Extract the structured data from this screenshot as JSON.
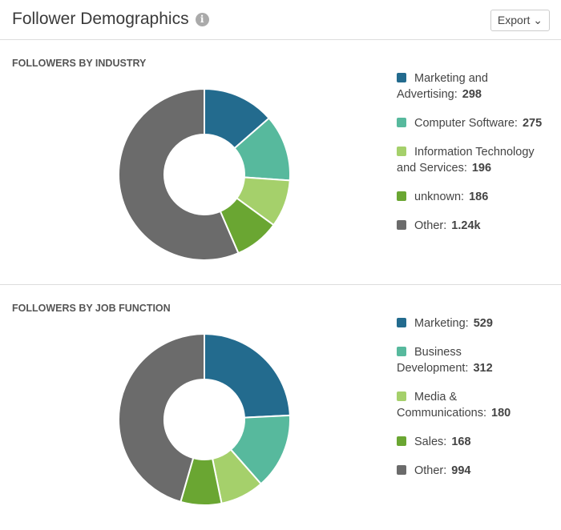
{
  "header": {
    "title": "Follower Demographics",
    "info_icon": "info-icon",
    "export_label": "Export ⌄"
  },
  "chart_data": [
    {
      "type": "pie",
      "donut": true,
      "title": "FOLLOWERS BY INDUSTRY",
      "legend": "right",
      "categories": [
        "Marketing and Advertising",
        "Computer Software",
        "Information Technology and Services",
        "unknown",
        "Other"
      ],
      "values": [
        298,
        275,
        196,
        186,
        1240
      ],
      "value_labels": [
        "298",
        "275",
        "196",
        "186",
        "1.24k"
      ],
      "colors": [
        "#236b8e",
        "#57b99d",
        "#a5d06b",
        "#6aa632",
        "#6b6b6b"
      ]
    },
    {
      "type": "pie",
      "donut": true,
      "title": "FOLLOWERS BY JOB FUNCTION",
      "legend": "right",
      "categories": [
        "Marketing",
        "Business Development",
        "Media & Communications",
        "Sales",
        "Other"
      ],
      "values": [
        529,
        312,
        180,
        168,
        994
      ],
      "value_labels": [
        "529",
        "312",
        "180",
        "168",
        "994"
      ],
      "colors": [
        "#236b8e",
        "#57b99d",
        "#a5d06b",
        "#6aa632",
        "#6b6b6b"
      ]
    }
  ]
}
